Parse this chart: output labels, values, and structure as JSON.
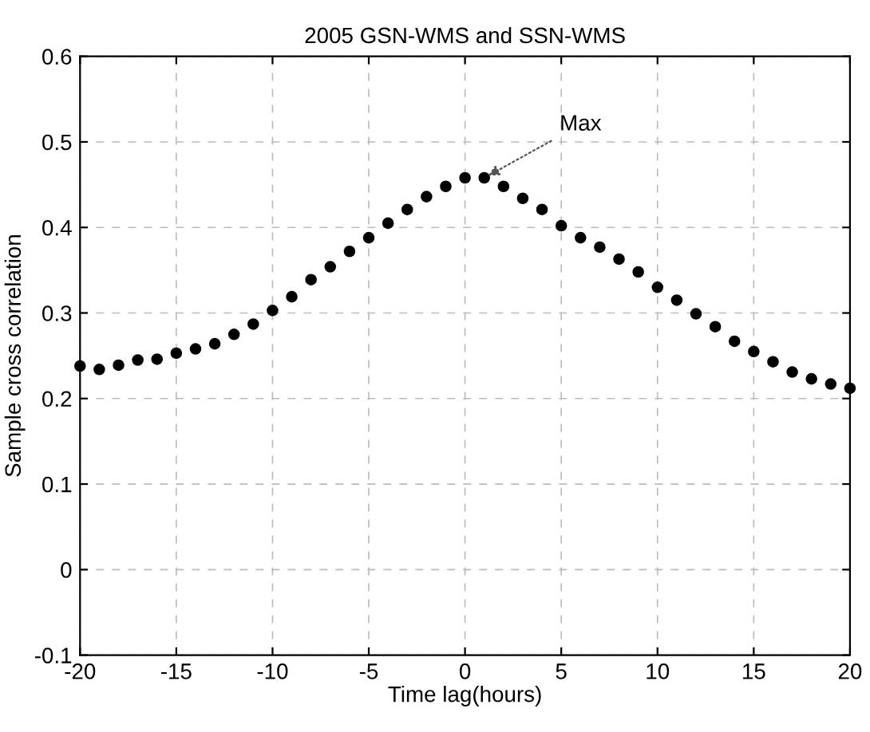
{
  "chart_data": {
    "type": "scatter",
    "title": "2005 GSN-WMS and SSN-WMS",
    "xlabel": "Time lag(hours)",
    "ylabel": "Sample cross correlation",
    "x": [
      -20,
      -19,
      -18,
      -17,
      -16,
      -15,
      -14,
      -13,
      -12,
      -11,
      -10,
      -9,
      -8,
      -7,
      -6,
      -5,
      -4,
      -3,
      -2,
      -1,
      0,
      1,
      2,
      3,
      4,
      5,
      6,
      7,
      8,
      9,
      10,
      11,
      12,
      13,
      14,
      15,
      16,
      17,
      18,
      19,
      20
    ],
    "series": [
      {
        "color": "#000000",
        "values": [
          0.238,
          0.234,
          0.239,
          0.245,
          0.246,
          0.253,
          0.258,
          0.264,
          0.275,
          0.287,
          0.303,
          0.319,
          0.339,
          0.354,
          0.372,
          0.388,
          0.405,
          0.421,
          0.436,
          0.448,
          0.458,
          0.458,
          0.448,
          0.434,
          0.421,
          0.402,
          0.388,
          0.377,
          0.363,
          0.348,
          0.33,
          0.315,
          0.299,
          0.284,
          0.267,
          0.255,
          0.243,
          0.231,
          0.223,
          0.217,
          0.212
        ]
      }
    ],
    "annotations": [
      {
        "text": "Max",
        "x": 1,
        "y": 0.458
      }
    ],
    "xlim": [
      -20,
      20
    ],
    "ylim": [
      -0.1,
      0.6
    ],
    "xticks": [
      -20,
      -15,
      -10,
      -5,
      0,
      5,
      10,
      15,
      20
    ],
    "yticks": [
      -0.1,
      0,
      0.1,
      0.2,
      0.3,
      0.4,
      0.5,
      0.6
    ],
    "grid": true,
    "marker": "circle",
    "legend": false
  }
}
